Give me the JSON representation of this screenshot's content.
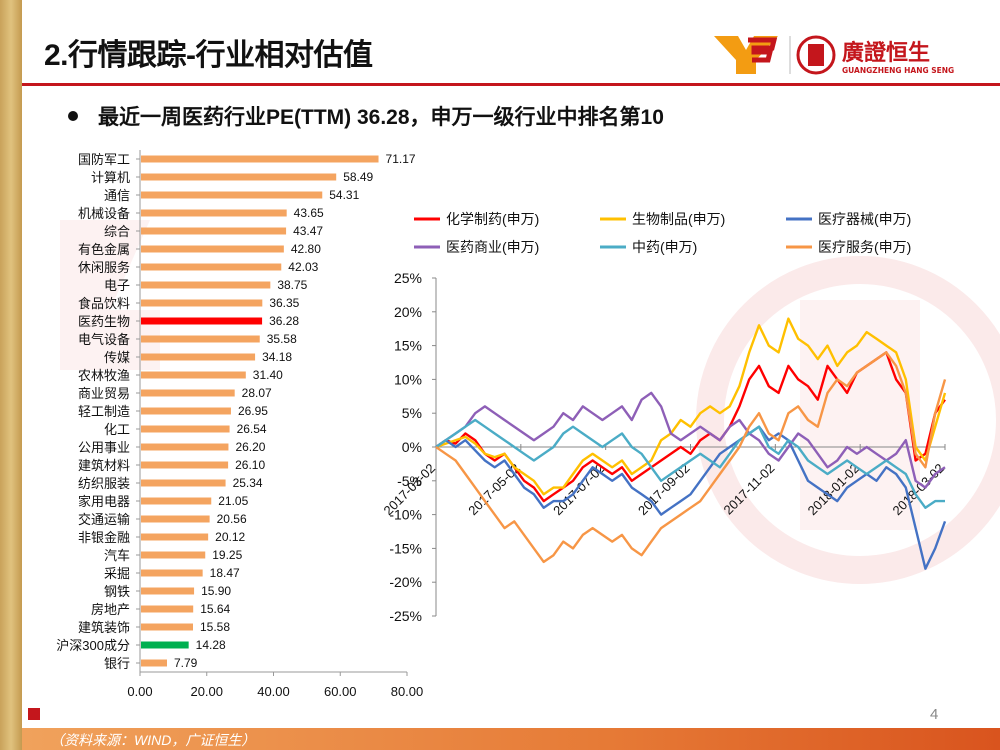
{
  "slide": {
    "title": "2.行情跟踪-行业相对估值",
    "bullet": "最近一周医药行业PE(TTM) 36.28，申万一级行业中排名第10",
    "source": "（资料来源：WIND，广证恒生）",
    "page_number": "4",
    "logo_text_cn": "廣證恒生",
    "logo_text_en": "GUANGZHENG HANG SENG"
  },
  "colors": {
    "accent": "#c4161c",
    "bar_default": "#f4a460",
    "bar_highlight": "#ff0000",
    "bar_index": "#00b050",
    "footer": "#e8743b",
    "gold": "#c9a25a"
  },
  "chart_data": [
    {
      "type": "bar",
      "orientation": "horizontal",
      "categories": [
        "国防军工",
        "计算机",
        "通信",
        "机械设备",
        "综合",
        "有色金属",
        "休闲服务",
        "电子",
        "食品饮料",
        "医药生物",
        "电气设备",
        "传媒",
        "农林牧渔",
        "商业贸易",
        "轻工制造",
        "化工",
        "公用事业",
        "建筑材料",
        "纺织服装",
        "家用电器",
        "交通运输",
        "非银金融",
        "汽车",
        "采掘",
        "钢铁",
        "房地产",
        "建筑装饰",
        "沪深300成分",
        "银行"
      ],
      "values": [
        71.17,
        58.49,
        54.31,
        43.65,
        43.47,
        42.8,
        42.03,
        38.75,
        36.35,
        36.28,
        35.58,
        34.18,
        31.4,
        28.07,
        26.95,
        26.54,
        26.2,
        26.1,
        25.34,
        21.05,
        20.56,
        20.12,
        19.25,
        18.47,
        15.9,
        15.64,
        15.58,
        14.28,
        7.79
      ],
      "value_labels": [
        "71.17",
        "58.49",
        "54.31",
        "43.65",
        "43.47",
        "42.80",
        "42.03",
        "38.75",
        "36.35",
        "36.28",
        "35.58",
        "34.18",
        "31.40",
        "28.07",
        "26.95",
        "26.54",
        "26.20",
        "26.10",
        "25.34",
        "21.05",
        "20.56",
        "20.12",
        "19.25",
        "18.47",
        "15.90",
        "15.64",
        "15.58",
        "14.28",
        "7.79"
      ],
      "highlight": {
        "医药生物": "#ff0000",
        "沪深300成分": "#00b050"
      },
      "xlim": [
        0,
        80
      ],
      "xticks": [
        "0.00",
        "20.00",
        "40.00",
        "60.00",
        "80.00"
      ],
      "xtick_values": [
        0,
        20,
        40,
        60,
        80
      ]
    },
    {
      "type": "line",
      "legend": [
        {
          "name": "化学制药(申万)",
          "color": "#ff0000"
        },
        {
          "name": "生物制品(申万)",
          "color": "#ffc000"
        },
        {
          "name": "医疗器械(申万)",
          "color": "#4472c4"
        },
        {
          "name": "医药商业(申万)",
          "color": "#8e5fb7"
        },
        {
          "name": "中药(申万)",
          "color": "#4bacc6"
        },
        {
          "name": "医疗服务(申万)",
          "color": "#f79646"
        }
      ],
      "x_labels": [
        "2017-03-02",
        "2017-05-02",
        "2017-07-02",
        "2017-09-02",
        "2017-11-02",
        "2018-01-02",
        "2018-03-02"
      ],
      "ylim": [
        -25,
        25
      ],
      "yticks": [
        "25%",
        "20%",
        "15%",
        "10%",
        "5%",
        "0%",
        "-5%",
        "-10%",
        "-15%",
        "-20%",
        "-25%"
      ],
      "ytick_values": [
        25,
        20,
        15,
        10,
        5,
        0,
        -5,
        -10,
        -15,
        -20,
        -25
      ],
      "n_points": 53,
      "series": [
        {
          "name": "化学制药(申万)",
          "values": [
            0,
            1,
            0.5,
            2,
            1,
            -1,
            -2,
            -1,
            -3,
            -5,
            -6,
            -8,
            -7,
            -6,
            -5,
            -3,
            -2,
            -3,
            -4,
            -3,
            -5,
            -4,
            -3,
            -2,
            -1,
            0,
            -1,
            1,
            2,
            1,
            3,
            6,
            10,
            12,
            9,
            8,
            12,
            10,
            9,
            7,
            12,
            10,
            8,
            11,
            12,
            13,
            14,
            10,
            8,
            -2,
            -1,
            5,
            7
          ]
        },
        {
          "name": "生物制品(申万)",
          "values": [
            0,
            0.5,
            1,
            1.5,
            0.5,
            -1,
            -1.5,
            -1,
            -3,
            -4,
            -5,
            -7,
            -6,
            -6,
            -4,
            -2,
            -1,
            -2,
            -3,
            -2,
            -4,
            -3,
            -2,
            1,
            2,
            4,
            3,
            5,
            6,
            5,
            6,
            9,
            14,
            18,
            15,
            14,
            19,
            16,
            15,
            13,
            15,
            12,
            14,
            15,
            17,
            16,
            15,
            14,
            10,
            0,
            -2,
            3,
            8
          ]
        },
        {
          "name": "医疗器械(申万)",
          "values": [
            0,
            1,
            0,
            1,
            -0.5,
            -2,
            -3,
            -2,
            -4,
            -6,
            -7,
            -9,
            -8,
            -8,
            -7,
            -5,
            -3,
            -4,
            -5,
            -4,
            -6,
            -7,
            -8,
            -10,
            -9,
            -8,
            -7,
            -5,
            -3,
            -1,
            0,
            1,
            2,
            3,
            1,
            2,
            1,
            -2,
            -5,
            -6,
            -7,
            -8,
            -6,
            -5,
            -4,
            -5,
            -3,
            -4,
            -6,
            -12,
            -18,
            -15,
            -11
          ]
        },
        {
          "name": "医药商业(申万)",
          "values": [
            0,
            1,
            2,
            3,
            5,
            6,
            5,
            4,
            3,
            2,
            1,
            2,
            3,
            5,
            4,
            6,
            5,
            4,
            5,
            6,
            4,
            7,
            8,
            6,
            2,
            1,
            2,
            3,
            2,
            1,
            3,
            4,
            2,
            1,
            -1,
            -2,
            0,
            2,
            1,
            -1,
            -3,
            -2,
            0,
            -1,
            0,
            -1,
            -2,
            -1,
            1,
            -5,
            -6,
            -4,
            -3
          ]
        },
        {
          "name": "中药(申万)",
          "values": [
            0,
            1,
            2,
            3,
            4,
            3,
            2,
            1,
            0,
            -1,
            -2,
            -1,
            0,
            2,
            3,
            2,
            1,
            0,
            1,
            2,
            0,
            -1,
            -3,
            -5,
            -4,
            -3,
            -2,
            -1,
            -2,
            -3,
            -1,
            1,
            2,
            3,
            0,
            -1,
            1,
            0,
            -2,
            -3,
            -4,
            -3,
            -2,
            -3,
            -4,
            -3,
            -2,
            -3,
            -4,
            -7,
            -9,
            -8,
            -8
          ]
        },
        {
          "name": "医疗服务(申万)",
          "values": [
            0,
            -1,
            -2,
            -4,
            -6,
            -8,
            -10,
            -12,
            -11,
            -13,
            -15,
            -17,
            -16,
            -14,
            -15,
            -13,
            -12,
            -13,
            -14,
            -13,
            -15,
            -16,
            -14,
            -12,
            -11,
            -10,
            -9,
            -8,
            -6,
            -4,
            -2,
            0,
            3,
            5,
            2,
            1,
            5,
            6,
            4,
            3,
            8,
            10,
            9,
            11,
            12,
            13,
            14,
            12,
            8,
            -1,
            -3,
            5,
            10
          ]
        }
      ]
    }
  ]
}
